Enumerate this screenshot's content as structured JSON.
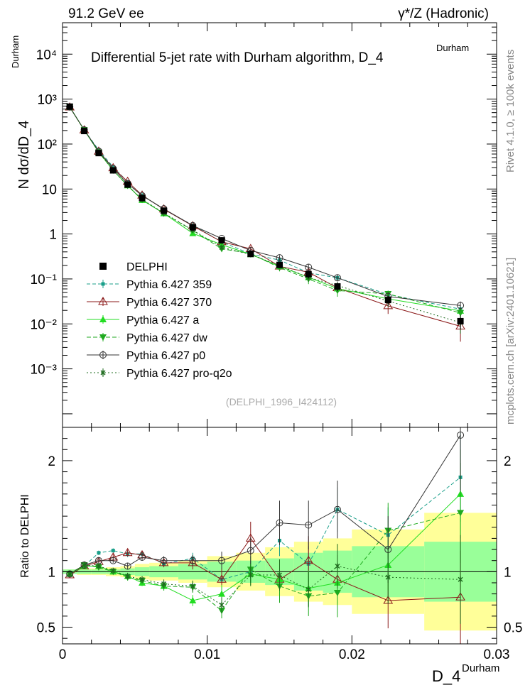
{
  "header": {
    "left": "91.2 GeV ee",
    "right": "γ*/Z (Hadronic)"
  },
  "side_text": {
    "rivet": "Rivet 4.1.0, ≥ 100k events",
    "mcplots": "mcplots.cern.ch [arXiv:2401.10621]"
  },
  "chart_data": {
    "type": "line",
    "title": "Differential 5-jet rate with Durham algorithm, D_4",
    "title_superscript": "Durham",
    "watermark": "(DELPHI_1996_I424112)",
    "xlabel": "D_4",
    "xlabel_superscript": "Durham",
    "ylabel": "N  dσ/dD_4",
    "ylabel_superscript": "Durham",
    "ratio_ylabel": "Ratio to DELPHI",
    "xlim": [
      0,
      0.03
    ],
    "ylim_main": [
      5e-05,
      50000
    ],
    "ylim_ratio": [
      0.35,
      2.3
    ],
    "x_ticks": [
      0,
      0.01,
      0.02,
      0.03
    ],
    "x_tick_labels": [
      "0",
      "0.01",
      "0.02",
      "0.03"
    ],
    "y_ticks_main": [
      0.001,
      0.01,
      0.1,
      1,
      10,
      100,
      1000,
      10000
    ],
    "y_tick_labels_main": [
      "10⁻³",
      "10⁻²",
      "10⁻¹",
      "1",
      "10",
      "10²",
      "10³",
      "10⁴"
    ],
    "y_ticks_ratio": [
      0.5,
      1,
      2
    ],
    "y_tick_labels_ratio": [
      "0.5",
      "1",
      "2"
    ],
    "x": [
      0.0005,
      0.0015,
      0.0025,
      0.0035,
      0.0045,
      0.0055,
      0.007,
      0.009,
      0.011,
      0.013,
      0.015,
      0.017,
      0.019,
      0.0225,
      0.0275
    ],
    "bin_edges": [
      0,
      0.001,
      0.002,
      0.003,
      0.004,
      0.005,
      0.006,
      0.008,
      0.01,
      0.012,
      0.014,
      0.016,
      0.018,
      0.02,
      0.025,
      0.03
    ],
    "data": {
      "name": "DELPHI",
      "values": [
        680,
        195,
        63,
        26,
        12.5,
        6.3,
        3.3,
        1.4,
        0.72,
        0.36,
        0.205,
        0.128,
        0.068,
        0.034,
        0.0115
      ],
      "errors": [
        12,
        4,
        1.5,
        0.8,
        0.5,
        0.3,
        0.2,
        0.1,
        0.06,
        0.04,
        0.03,
        0.025,
        0.015,
        0.008,
        0.004
      ]
    },
    "band_inner": [
      0.02,
      0.02,
      0.02,
      0.02,
      0.03,
      0.04,
      0.05,
      0.07,
      0.09,
      0.1,
      0.12,
      0.17,
      0.19,
      0.23,
      0.27
    ],
    "band_outer": [
      0.02,
      0.03,
      0.03,
      0.04,
      0.05,
      0.07,
      0.08,
      0.1,
      0.14,
      0.17,
      0.22,
      0.27,
      0.3,
      0.38,
      0.53
    ],
    "series": [
      {
        "name": "Pythia 6.427 359",
        "color": "#1a9f8a",
        "marker": "square-small",
        "dash": "5,3",
        "ratio": [
          0.99,
          1.05,
          1.17,
          1.19,
          1.16,
          1.16,
          1.07,
          1.12,
          0.93,
          1.0,
          1.28,
          1.07,
          1.56,
          1.33,
          1.85
        ],
        "ratio_err": [
          0.01,
          0.02,
          0.02,
          0.02,
          0.03,
          0.03,
          0.03,
          0.05,
          0.07,
          0.1,
          0.14,
          0.16,
          0.2,
          0.25,
          0.4
        ]
      },
      {
        "name": "Pythia 6.427 370",
        "color": "#8b1a1a",
        "marker": "triangle-open",
        "dash": "",
        "ratio": [
          0.97,
          1.05,
          1.09,
          1.13,
          1.17,
          1.15,
          1.08,
          1.08,
          0.93,
          1.3,
          0.93,
          1.1,
          0.93,
          0.74,
          0.77
        ],
        "ratio_err": [
          0.01,
          0.02,
          0.02,
          0.03,
          0.03,
          0.04,
          0.04,
          0.06,
          0.1,
          0.15,
          0.18,
          0.22,
          0.22,
          0.25,
          0.42
        ]
      },
      {
        "name": "Pythia 6.427 a",
        "color": "#22dd22",
        "marker": "triangle",
        "dash": "",
        "ratio": [
          0.98,
          1.05,
          1.05,
          1.0,
          0.96,
          0.9,
          0.87,
          0.74,
          0.8,
          0.98,
          0.93,
          0.85,
          0.9,
          1.06,
          1.7
        ],
        "ratio_err": [
          0.01,
          0.02,
          0.02,
          0.02,
          0.03,
          0.03,
          0.04,
          0.05,
          0.08,
          0.1,
          0.14,
          0.16,
          0.2,
          0.23,
          0.4
        ]
      },
      {
        "name": "Pythia 6.427 dw",
        "color": "#1faa1f",
        "marker": "triangle-down",
        "dash": "6,3",
        "ratio": [
          0.98,
          1.06,
          1.04,
          1.0,
          0.95,
          0.92,
          0.87,
          0.86,
          0.65,
          1.02,
          0.87,
          0.78,
          0.81,
          1.37,
          1.53
        ],
        "ratio_err": [
          0.01,
          0.02,
          0.02,
          0.02,
          0.03,
          0.03,
          0.04,
          0.05,
          0.07,
          0.12,
          0.15,
          0.18,
          0.22,
          0.25,
          0.45
        ]
      },
      {
        "name": "Pythia 6.427 p0",
        "color": "#333333",
        "marker": "circle-open",
        "dash": "",
        "ratio": [
          0.98,
          1.06,
          1.1,
          1.1,
          1.05,
          1.13,
          1.1,
          1.1,
          1.1,
          1.19,
          1.44,
          1.42,
          1.56,
          1.2,
          2.23
        ],
        "ratio_err": [
          0.01,
          0.02,
          0.02,
          0.02,
          0.03,
          0.03,
          0.04,
          0.05,
          0.08,
          0.12,
          0.2,
          0.22,
          0.26,
          0.3,
          0.5
        ]
      },
      {
        "name": "Pythia 6.427 pro-q2o",
        "color": "#1e6b1e",
        "marker": "star",
        "dash": "2,3",
        "ratio": [
          0.98,
          1.06,
          1.05,
          1.01,
          0.96,
          0.93,
          0.89,
          0.87,
          0.7,
          0.97,
          0.97,
          0.84,
          1.05,
          0.95,
          0.93
        ],
        "ratio_err": [
          0.01,
          0.02,
          0.02,
          0.02,
          0.03,
          0.03,
          0.04,
          0.05,
          0.07,
          0.1,
          0.14,
          0.16,
          0.2,
          0.24,
          0.4
        ]
      }
    ]
  }
}
